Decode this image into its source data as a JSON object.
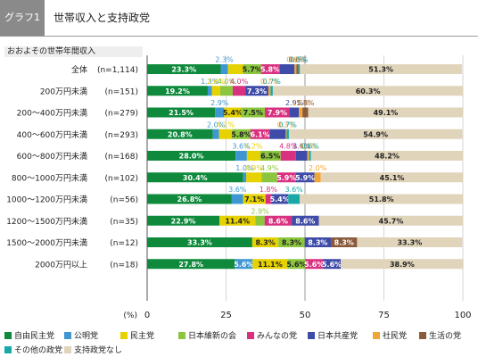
{
  "header": {
    "badge": "グラフ1",
    "title": "世帯収入と支持政党"
  },
  "column_header": "おおよその世帯年間収入",
  "axis_unit": "(%)",
  "chart_data": {
    "type": "bar",
    "stacked": true,
    "orientation": "horizontal",
    "xlim": [
      0,
      100
    ],
    "x_ticks": [
      0,
      25,
      50,
      75,
      100
    ],
    "grid": true,
    "legend_position": "bottom",
    "categories": [
      {
        "label": "全体",
        "n": "(n=1,114)"
      },
      {
        "label": "200万円未満",
        "n": "(n=151)"
      },
      {
        "label": "200～400万円未満",
        "n": "(n=279)"
      },
      {
        "label": "400～600万円未満",
        "n": "(n=293)"
      },
      {
        "label": "600～800万円未満",
        "n": "(n=168)"
      },
      {
        "label": "800～1000万円未満",
        "n": "(n=102)"
      },
      {
        "label": "1000～1200万円未満",
        "n": "(n=56)"
      },
      {
        "label": "1200～1500万円未満",
        "n": "(n=35)"
      },
      {
        "label": "1500～2000万円未満",
        "n": "(n=12)"
      },
      {
        "label": "2000万円以上",
        "n": "(n=18)"
      }
    ],
    "series": [
      {
        "name": "自由民主党",
        "color": "#0f8a3c",
        "values": [
          23.3,
          19.2,
          21.5,
          20.8,
          28.0,
          30.4,
          26.8,
          22.9,
          33.3,
          27.8
        ]
      },
      {
        "name": "公明党",
        "color": "#3f97d2",
        "values": [
          2.3,
          1.3,
          2.9,
          2.0,
          3.6,
          1.0,
          3.6,
          0.0,
          0.0,
          5.6
        ]
      },
      {
        "name": "民主党",
        "color": "#e6d200",
        "values": [
          4.8,
          2.6,
          5.4,
          4.1,
          4.2,
          4.9,
          7.1,
          11.4,
          8.3,
          11.1
        ]
      },
      {
        "name": "日本維新の会",
        "color": "#8cc63e",
        "values": [
          5.7,
          4.0,
          7.5,
          5.8,
          6.5,
          4.9,
          0.0,
          2.9,
          8.3,
          5.6
        ]
      },
      {
        "name": "みんなの党",
        "color": "#d8317f",
        "values": [
          5.8,
          4.0,
          7.9,
          6.1,
          4.8,
          5.9,
          1.8,
          8.6,
          0.0,
          5.6
        ]
      },
      {
        "name": "日本共産党",
        "color": "#3f4ba8",
        "values": [
          4.8,
          7.3,
          2.9,
          5.1,
          3.6,
          5.9,
          5.4,
          8.6,
          8.3,
          5.6
        ]
      },
      {
        "name": "社民党",
        "color": "#f0a636",
        "values": [
          0.6,
          0.7,
          1.1,
          0.3,
          0.6,
          2.0,
          0.0,
          0.0,
          0.0,
          0.0
        ]
      },
      {
        "name": "生活の党",
        "color": "#8a5a3c",
        "values": [
          0.6,
          0.0,
          1.8,
          0.0,
          0.0,
          0.0,
          0.0,
          0.0,
          8.3,
          0.0
        ]
      },
      {
        "name": "その他の政党",
        "color": "#18a8a8",
        "values": [
          0.5,
          0.7,
          0.0,
          0.7,
          0.6,
          0.0,
          3.6,
          0.0,
          0.0,
          0.0
        ]
      },
      {
        "name": "支持政党なし",
        "color": "#e0d4bb",
        "values": [
          51.3,
          60.3,
          49.1,
          54.9,
          48.2,
          45.1,
          51.8,
          45.7,
          33.3,
          38.9
        ]
      }
    ],
    "small_label_text": "0.3%",
    "small_labels": [
      [
        null,
        "2.3%",
        null,
        null,
        null,
        null,
        "0.6%",
        "0.6%",
        "0.5%",
        null
      ],
      [
        null,
        "1.3%",
        "2.6%",
        "4.0%",
        "4.0%",
        null,
        "0.7%",
        null,
        "0.7%",
        null
      ],
      [
        null,
        "2.9%",
        null,
        null,
        null,
        "2.9%",
        "1.1%",
        "1.8%",
        null,
        null
      ],
      [
        null,
        "2.0%",
        "4.1%",
        null,
        null,
        null,
        "0.3%",
        null,
        "0.7%",
        null
      ],
      [
        null,
        "3.6%",
        "4.2%",
        null,
        "4.8%",
        "3.6%",
        "0.6%",
        null,
        "0.6%",
        null
      ],
      [
        null,
        "1.0%",
        "4.9%",
        "4.9%",
        null,
        null,
        "2.0%",
        null,
        null,
        null
      ],
      [
        null,
        "3.6%",
        null,
        null,
        "1.8%",
        null,
        null,
        null,
        "3.6%",
        null
      ],
      [
        null,
        null,
        null,
        "2.9%",
        null,
        null,
        null,
        null,
        null,
        null
      ],
      [
        null,
        null,
        null,
        null,
        null,
        null,
        null,
        null,
        null,
        null
      ],
      [
        null,
        null,
        null,
        null,
        null,
        null,
        null,
        null,
        null,
        null
      ]
    ]
  }
}
